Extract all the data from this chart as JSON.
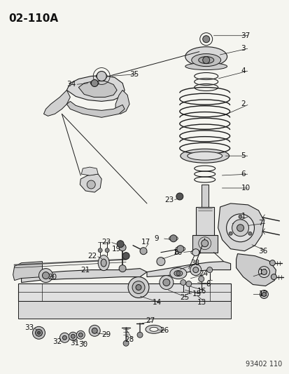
{
  "title": "02-110A",
  "background_color": "#f5f5f0",
  "figure_width": 4.14,
  "figure_height": 5.33,
  "dpi": 100,
  "diagram_code": "93402 110",
  "title_fontsize": 11,
  "label_fontsize": 7.5,
  "lc": "#1a1a1a",
  "fc_light": "#e8e8e8",
  "fc_mid": "#cccccc",
  "fc_dark": "#999999"
}
